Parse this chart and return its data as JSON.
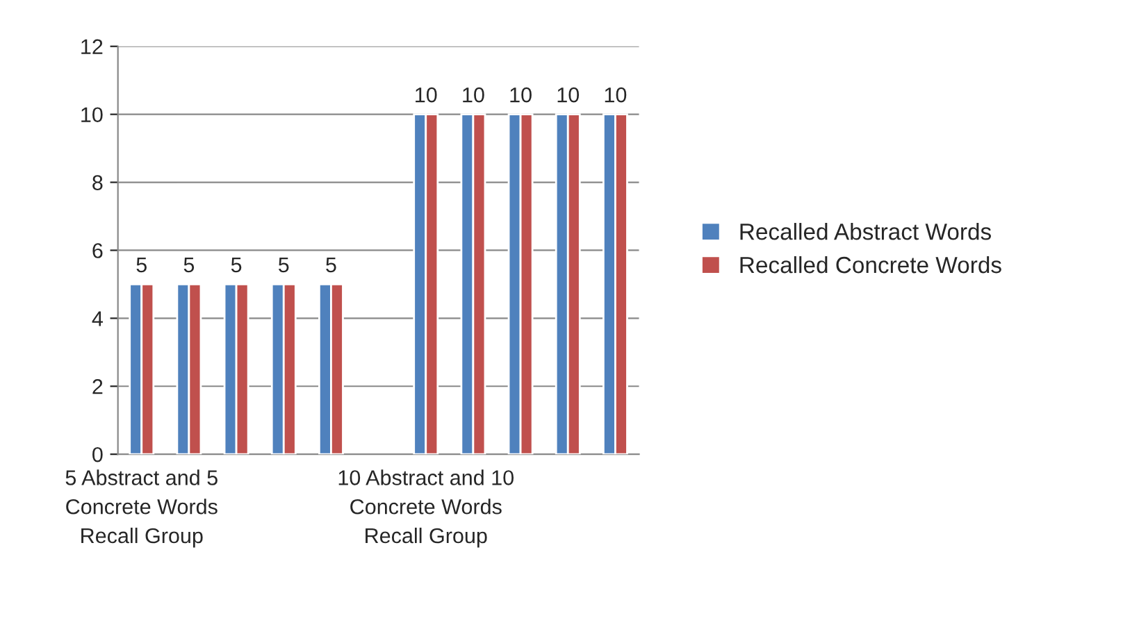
{
  "chart_data": {
    "type": "bar",
    "categories": [
      "5 Abstract and 5 Concrete Words Recall Group",
      null,
      null,
      null,
      null,
      null,
      "10 Abstract and 10 Concrete Words Recall Group",
      null,
      null,
      null,
      null
    ],
    "series": [
      {
        "name": "Recalled Abstract Words",
        "color": "#4f81bd",
        "values": [
          5,
          5,
          5,
          5,
          5,
          null,
          10,
          10,
          10,
          10,
          10
        ],
        "value_labels": [
          "5",
          "5",
          "5",
          "5",
          "5",
          null,
          "10",
          "10",
          "10",
          "10",
          "10"
        ]
      },
      {
        "name": "Recalled Concrete Words",
        "color": "#c0504d",
        "values": [
          5,
          5,
          5,
          5,
          5,
          null,
          10,
          10,
          10,
          10,
          10
        ]
      }
    ],
    "ylim": [
      0,
      12
    ],
    "yticks": [
      0,
      2,
      4,
      6,
      8,
      10,
      12
    ],
    "grid": "y",
    "legend": "right"
  }
}
